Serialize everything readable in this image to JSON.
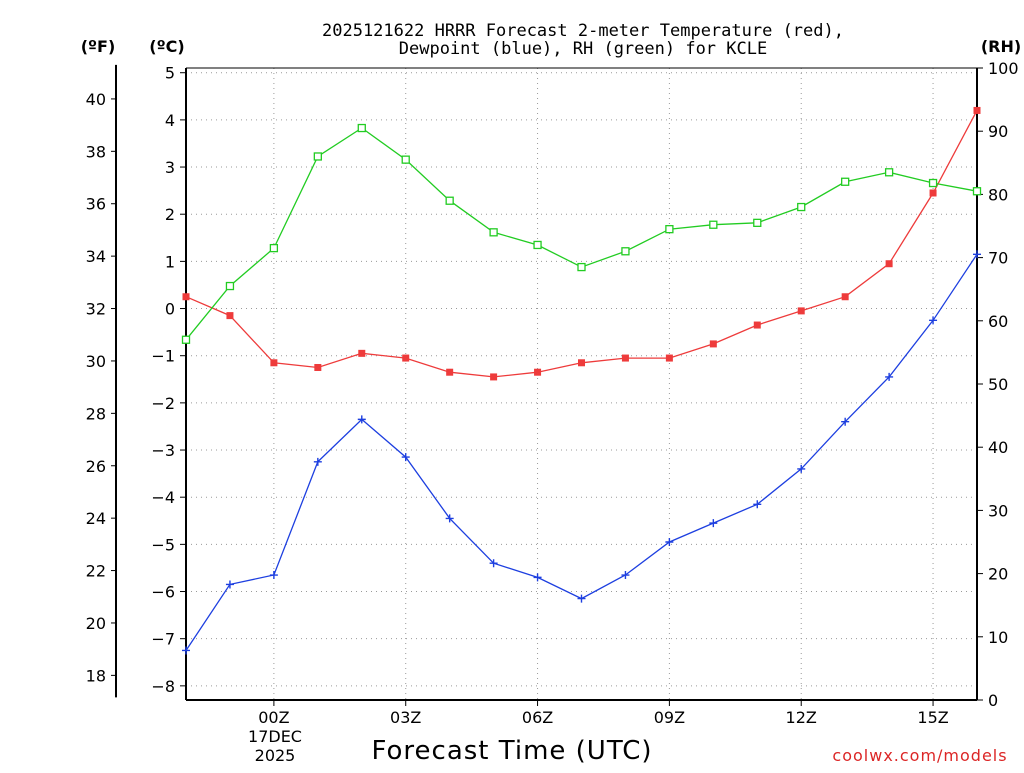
{
  "chart_data": {
    "type": "line",
    "title_line1": "2025121622 HRRR Forecast 2-meter Temperature (red),",
    "title_line2": "Dewpoint (blue), RH (green) for KCLE",
    "xlabel": "Forecast Time (UTC)",
    "credit": "coolwx.com/models",
    "date_line1": "17DEC",
    "date_line2": "2025",
    "units": {
      "fahrenheit": "(ºF)",
      "celsius": "(ºC)",
      "rh": "(RH)"
    },
    "x_hours": [
      -2,
      -1,
      0,
      1,
      2,
      3,
      4,
      5,
      6,
      7,
      8,
      9,
      10,
      11,
      12,
      13,
      14,
      15,
      16
    ],
    "x_range": [
      -2,
      16
    ],
    "x_ticks": [
      {
        "hour": 0,
        "label": "00Z"
      },
      {
        "hour": 3,
        "label": "03Z"
      },
      {
        "hour": 6,
        "label": "06Z"
      },
      {
        "hour": 9,
        "label": "09Z"
      },
      {
        "hour": 12,
        "label": "12Z"
      },
      {
        "hour": 15,
        "label": "15Z"
      }
    ],
    "y_left_celsius": {
      "range": [
        -8.3,
        5.1
      ],
      "ticks": [
        "-8",
        "-7",
        "-6",
        "-5",
        "-4",
        "-3",
        "-2",
        "-1",
        "0",
        "1",
        "2",
        "3",
        "4",
        "5"
      ]
    },
    "y_left_fahrenheit": {
      "ticks": [
        "18",
        "20",
        "22",
        "24",
        "26",
        "28",
        "30",
        "32",
        "34",
        "36",
        "38",
        "40"
      ]
    },
    "y_right_rh": {
      "range": [
        0,
        100
      ],
      "ticks": [
        "0",
        "10",
        "20",
        "30",
        "40",
        "50",
        "60",
        "70",
        "80",
        "90",
        "100"
      ]
    },
    "series": [
      {
        "name": "2-meter Temperature",
        "axis": "celsius",
        "color": "#ee3b3b",
        "marker": "filled-square",
        "values": [
          0.25,
          -0.15,
          -1.15,
          -1.25,
          -0.95,
          -1.05,
          -1.35,
          -1.45,
          -1.35,
          -1.15,
          -1.05,
          -1.05,
          -0.75,
          -0.35,
          -0.05,
          0.25,
          0.95,
          2.45,
          4.2
        ]
      },
      {
        "name": "Dewpoint",
        "axis": "celsius",
        "color": "#1d3fe0",
        "marker": "plus",
        "values": [
          -7.25,
          -5.85,
          -5.65,
          -3.25,
          -2.35,
          -3.15,
          -4.45,
          -5.4,
          -5.7,
          -6.15,
          -5.65,
          -4.95,
          -4.55,
          -4.15,
          -3.4,
          -2.4,
          -1.45,
          -0.25,
          1.15
        ]
      },
      {
        "name": "RH",
        "axis": "rh",
        "color": "#22cc22",
        "marker": "open-square",
        "values": [
          57,
          65.5,
          71.5,
          86,
          90.5,
          85.5,
          79,
          74,
          72,
          68.5,
          71,
          74.5,
          75.2,
          75.5,
          78,
          82,
          83.5,
          81.8,
          80.5
        ]
      }
    ]
  }
}
